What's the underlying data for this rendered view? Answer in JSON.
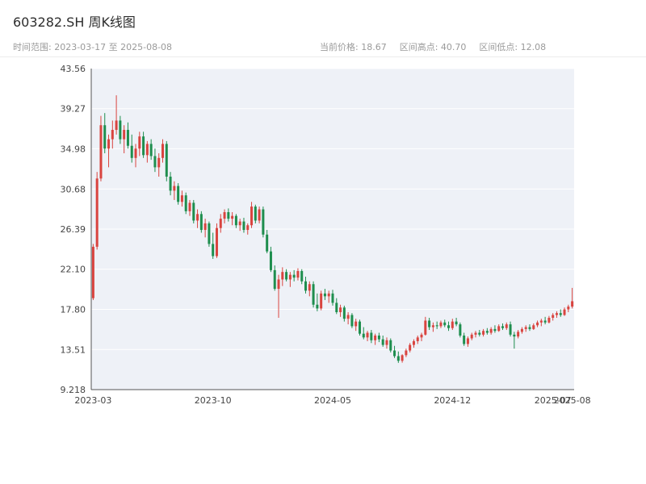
{
  "header": {
    "title": "603282.SH 周K线图",
    "range_label": "时间范围: 2023-03-17 至 2025-08-08",
    "stats": [
      {
        "label": "当前价格: 18.67"
      },
      {
        "label": "区间高点: 40.70"
      },
      {
        "label": "区间低点: 12.08"
      }
    ]
  },
  "chart_data": {
    "type": "candlestick",
    "title": "603282.SH 周K线图",
    "period": "weekly",
    "start_date": "2023-03-17",
    "end_date": "2025-08-08",
    "current_price": 18.67,
    "range_high": 40.7,
    "range_low": 12.08,
    "ylim": [
      9.218,
      43.56
    ],
    "y_ticks": [
      "43.56",
      "39.27",
      "34.98",
      "30.68",
      "26.39",
      "22.10",
      "17.80",
      "13.51",
      "9.218"
    ],
    "x_ticks": [
      {
        "label": "2023-03",
        "week": 0
      },
      {
        "label": "2023-10",
        "week": 31
      },
      {
        "label": "2024-05",
        "week": 62
      },
      {
        "label": "2024-12",
        "week": 93
      },
      {
        "label": "2025-07",
        "week": 119
      },
      {
        "label": "2025-08",
        "week": 124
      }
    ],
    "up_color": "#d9443f",
    "down_color": "#1e8e4e",
    "plot_bg": "#eef1f7",
    "grid_color": "#ffffff",
    "axis_color": "#555555",
    "tick_text_color": "#444444",
    "candles": [
      [
        19.0,
        24.8,
        18.8,
        24.5
      ],
      [
        24.5,
        32.5,
        24.2,
        31.8
      ],
      [
        31.8,
        38.5,
        31.5,
        37.5
      ],
      [
        37.5,
        38.8,
        34.5,
        35.0
      ],
      [
        35.0,
        36.5,
        33.0,
        36.0
      ],
      [
        36.0,
        38.0,
        35.0,
        37.0
      ],
      [
        37.0,
        40.7,
        36.5,
        38.0
      ],
      [
        38.0,
        38.5,
        35.5,
        36.0
      ],
      [
        36.0,
        37.5,
        34.5,
        37.0
      ],
      [
        37.0,
        37.8,
        35.0,
        35.3
      ],
      [
        35.3,
        36.5,
        33.5,
        34.0
      ],
      [
        34.0,
        35.5,
        33.0,
        35.0
      ],
      [
        35.0,
        36.8,
        34.2,
        36.3
      ],
      [
        36.3,
        36.8,
        34.0,
        34.3
      ],
      [
        34.3,
        35.8,
        33.5,
        35.5
      ],
      [
        35.5,
        36.0,
        33.8,
        34.2
      ],
      [
        34.2,
        35.0,
        32.5,
        33.0
      ],
      [
        33.0,
        34.5,
        32.0,
        34.0
      ],
      [
        34.0,
        36.0,
        33.5,
        35.5
      ],
      [
        35.5,
        35.8,
        31.5,
        32.0
      ],
      [
        32.0,
        32.5,
        30.0,
        30.5
      ],
      [
        30.5,
        31.5,
        29.5,
        31.0
      ],
      [
        31.0,
        31.3,
        29.0,
        29.3
      ],
      [
        29.3,
        30.5,
        28.8,
        30.0
      ],
      [
        30.0,
        30.3,
        28.0,
        28.3
      ],
      [
        28.3,
        29.5,
        27.8,
        29.2
      ],
      [
        29.2,
        29.5,
        27.0,
        27.3
      ],
      [
        27.3,
        28.5,
        26.5,
        28.0
      ],
      [
        28.0,
        28.3,
        26.0,
        26.3
      ],
      [
        26.3,
        27.5,
        25.5,
        27.0
      ],
      [
        27.0,
        27.2,
        24.5,
        24.8
      ],
      [
        24.8,
        26.0,
        23.2,
        23.5
      ],
      [
        23.5,
        27.0,
        23.3,
        26.5
      ],
      [
        26.5,
        28.0,
        26.0,
        27.5
      ],
      [
        27.5,
        28.5,
        27.0,
        28.2
      ],
      [
        28.2,
        28.6,
        27.2,
        27.5
      ],
      [
        27.5,
        28.2,
        26.8,
        27.8
      ],
      [
        27.8,
        28.0,
        26.5,
        26.8
      ],
      [
        26.8,
        27.5,
        26.2,
        27.2
      ],
      [
        27.2,
        27.6,
        26.0,
        26.3
      ],
      [
        26.3,
        27.0,
        25.8,
        26.8
      ],
      [
        26.8,
        29.3,
        26.5,
        28.8
      ],
      [
        28.8,
        29.0,
        27.0,
        27.3
      ],
      [
        27.3,
        28.8,
        27.0,
        28.5
      ],
      [
        28.5,
        28.8,
        25.5,
        25.8
      ],
      [
        25.8,
        26.3,
        23.8,
        24.0
      ],
      [
        24.0,
        24.5,
        21.8,
        22.0
      ],
      [
        22.0,
        22.5,
        19.8,
        20.0
      ],
      [
        20.0,
        21.5,
        16.9,
        21.0
      ],
      [
        21.0,
        22.3,
        20.3,
        21.8
      ],
      [
        21.8,
        22.1,
        20.8,
        21.0
      ],
      [
        21.0,
        21.8,
        20.2,
        21.5
      ],
      [
        21.5,
        22.0,
        20.8,
        21.2
      ],
      [
        21.2,
        22.2,
        20.9,
        21.9
      ],
      [
        21.9,
        22.1,
        20.5,
        20.8
      ],
      [
        20.8,
        21.3,
        19.5,
        19.8
      ],
      [
        19.8,
        20.8,
        19.2,
        20.5
      ],
      [
        20.5,
        20.8,
        18.0,
        18.3
      ],
      [
        18.3,
        19.5,
        17.6,
        17.9
      ],
      [
        17.9,
        19.8,
        17.7,
        19.5
      ],
      [
        19.5,
        20.0,
        18.8,
        19.2
      ],
      [
        19.2,
        19.8,
        18.5,
        19.5
      ],
      [
        19.5,
        19.9,
        18.2,
        18.5
      ],
      [
        18.5,
        19.0,
        17.3,
        17.5
      ],
      [
        17.5,
        18.3,
        17.0,
        18.0
      ],
      [
        18.0,
        18.2,
        16.5,
        16.8
      ],
      [
        16.8,
        17.5,
        16.2,
        17.2
      ],
      [
        17.2,
        17.4,
        15.8,
        16.0
      ],
      [
        16.0,
        16.8,
        15.5,
        16.5
      ],
      [
        16.5,
        16.7,
        15.0,
        15.2
      ],
      [
        15.2,
        15.9,
        14.6,
        14.8
      ],
      [
        14.8,
        15.5,
        14.4,
        15.3
      ],
      [
        15.3,
        15.6,
        14.2,
        14.5
      ],
      [
        14.5,
        15.2,
        14.0,
        15.0
      ],
      [
        15.0,
        15.3,
        14.3,
        14.6
      ],
      [
        14.6,
        15.0,
        13.8,
        14.0
      ],
      [
        14.0,
        14.8,
        13.6,
        14.5
      ],
      [
        14.5,
        14.7,
        13.2,
        13.4
      ],
      [
        13.4,
        13.9,
        12.6,
        12.8
      ],
      [
        12.8,
        13.3,
        12.08,
        12.3
      ],
      [
        12.3,
        13.0,
        12.1,
        12.9
      ],
      [
        12.9,
        13.6,
        12.7,
        13.4
      ],
      [
        13.4,
        14.2,
        13.2,
        14.0
      ],
      [
        14.0,
        14.6,
        13.7,
        14.4
      ],
      [
        14.4,
        15.0,
        14.1,
        14.8
      ],
      [
        14.8,
        15.3,
        14.4,
        15.1
      ],
      [
        15.1,
        17.0,
        15.0,
        16.6
      ],
      [
        16.6,
        16.9,
        15.6,
        15.9
      ],
      [
        15.9,
        16.4,
        15.4,
        16.1
      ],
      [
        16.1,
        16.5,
        15.7,
        16.0
      ],
      [
        16.0,
        16.6,
        15.8,
        16.4
      ],
      [
        16.4,
        16.7,
        15.9,
        16.1
      ],
      [
        16.1,
        16.5,
        15.5,
        15.8
      ],
      [
        15.8,
        16.8,
        15.6,
        16.5
      ],
      [
        16.5,
        16.9,
        16.0,
        16.2
      ],
      [
        16.2,
        16.4,
        14.8,
        15.0
      ],
      [
        15.0,
        15.3,
        13.9,
        14.1
      ],
      [
        14.1,
        14.9,
        13.8,
        14.7
      ],
      [
        14.7,
        15.3,
        14.5,
        15.1
      ],
      [
        15.1,
        15.5,
        14.8,
        15.3
      ],
      [
        15.3,
        15.6,
        14.9,
        15.1
      ],
      [
        15.1,
        15.7,
        14.9,
        15.5
      ],
      [
        15.5,
        15.8,
        15.1,
        15.3
      ],
      [
        15.3,
        15.9,
        15.1,
        15.7
      ],
      [
        15.7,
        16.1,
        15.3,
        15.5
      ],
      [
        15.5,
        16.2,
        15.4,
        16.0
      ],
      [
        16.0,
        16.3,
        15.6,
        15.8
      ],
      [
        15.8,
        16.4,
        15.6,
        16.2
      ],
      [
        16.2,
        16.5,
        14.9,
        15.1
      ],
      [
        15.1,
        15.4,
        13.6,
        14.9
      ],
      [
        14.9,
        15.6,
        14.7,
        15.4
      ],
      [
        15.4,
        15.9,
        15.2,
        15.7
      ],
      [
        15.7,
        16.1,
        15.4,
        15.9
      ],
      [
        15.9,
        16.2,
        15.5,
        15.7
      ],
      [
        15.7,
        16.3,
        15.6,
        16.1
      ],
      [
        16.1,
        16.6,
        15.9,
        16.4
      ],
      [
        16.4,
        16.8,
        16.0,
        16.6
      ],
      [
        16.6,
        17.0,
        16.2,
        16.4
      ],
      [
        16.4,
        17.1,
        16.3,
        16.9
      ],
      [
        16.9,
        17.4,
        16.6,
        17.2
      ],
      [
        17.2,
        17.6,
        16.9,
        17.4
      ],
      [
        17.4,
        17.8,
        17.0,
        17.2
      ],
      [
        17.2,
        18.0,
        17.1,
        17.8
      ],
      [
        17.8,
        18.3,
        17.5,
        18.1
      ],
      [
        18.1,
        20.1,
        17.9,
        18.67
      ]
    ]
  }
}
